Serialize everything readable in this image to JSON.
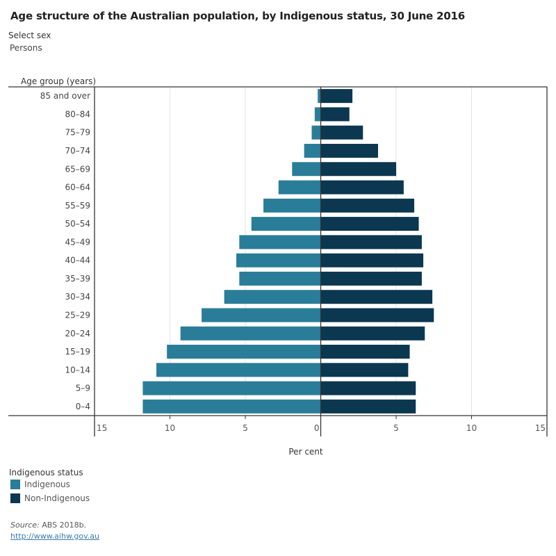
{
  "title": "Age structure of the Australian population, by Indigenous status, 30 June 2016",
  "filter": {
    "label": "Select sex",
    "value": "Persons"
  },
  "legend": {
    "title": "Indigenous status",
    "items": [
      {
        "label": "Indigenous",
        "color": "#2a7d98"
      },
      {
        "label": "Non-Indigenous",
        "color": "#0c3750"
      }
    ]
  },
  "source": {
    "prefix": "Source:",
    "text": " ABS 2018b."
  },
  "link": "http://www.aihw.gov.au",
  "chart_data": {
    "type": "bar",
    "orientation": "horizontal-population-pyramid",
    "title": "Age structure of the Australian population, by Indigenous status, 30 June 2016",
    "ylabel": "Age group (years)",
    "xlabel": "Per cent",
    "xlim": [
      -15,
      15
    ],
    "x_ticks": [
      -15,
      -10,
      -5,
      0,
      5,
      10,
      15
    ],
    "x_tick_labels": [
      "15",
      "10",
      "5",
      "0",
      "5",
      "10",
      "15"
    ],
    "grid": true,
    "legend_position": "bottom-left",
    "categories": [
      "85 and over",
      "80–84",
      "75–79",
      "70–74",
      "65–69",
      "60–64",
      "55–59",
      "50–54",
      "45–49",
      "40–44",
      "35–39",
      "30–34",
      "25–29",
      "20–24",
      "15–19",
      "10–14",
      "5–9",
      "0–4"
    ],
    "series": [
      {
        "name": "Indigenous",
        "side": "left",
        "color": "#2a7d98",
        "values": [
          0.2,
          0.4,
          0.6,
          1.1,
          1.9,
          2.8,
          3.8,
          4.6,
          5.4,
          5.6,
          5.4,
          6.4,
          7.9,
          9.3,
          10.2,
          10.9,
          11.8,
          11.8
        ]
      },
      {
        "name": "Non-Indigenous",
        "side": "right",
        "color": "#0c3750",
        "values": [
          2.1,
          1.9,
          2.8,
          3.8,
          5.0,
          5.5,
          6.2,
          6.5,
          6.7,
          6.8,
          6.7,
          7.4,
          7.5,
          6.9,
          5.9,
          5.8,
          6.3,
          6.3
        ]
      }
    ]
  }
}
